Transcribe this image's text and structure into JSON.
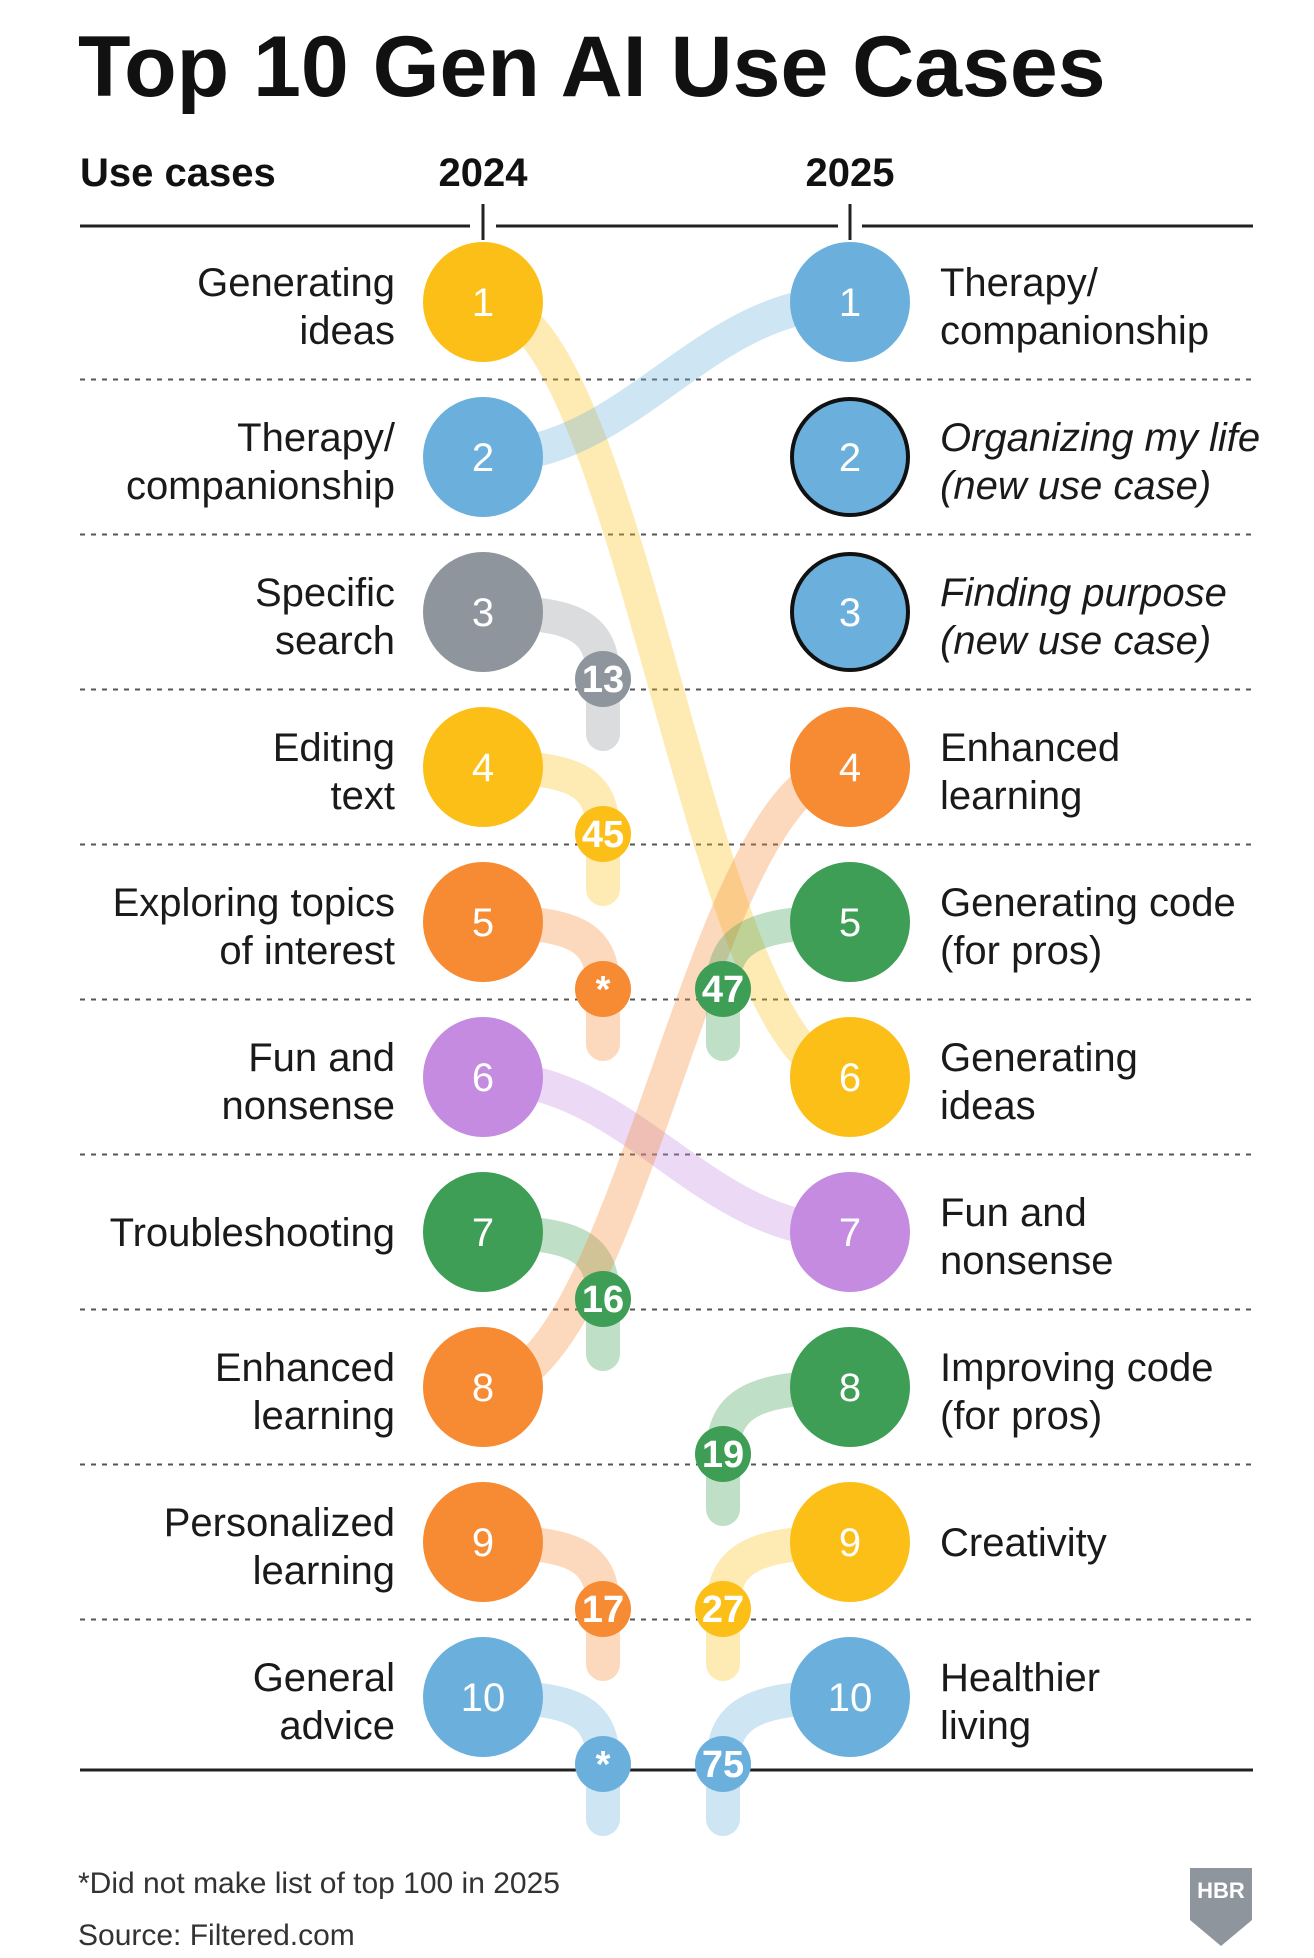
{
  "chart_data": {
    "type": "table",
    "title": "Top 10 Gen AI Use Cases",
    "column_headers": {
      "use_cases": "Use cases",
      "year_a": "2024",
      "year_b": "2025"
    },
    "rows_2024": [
      {
        "rank": 1,
        "label": [
          "Generating",
          "ideas"
        ],
        "color": "#FBBF17",
        "moved_to": 6
      },
      {
        "rank": 2,
        "label": [
          "Therapy/",
          "companionship"
        ],
        "color": "#6BB0DC",
        "moved_to": 1
      },
      {
        "rank": 3,
        "label": [
          "Specific",
          "search"
        ],
        "color": "#8E959C",
        "moved_to": 13
      },
      {
        "rank": 4,
        "label": [
          "Editing",
          "text"
        ],
        "color": "#FBBF17",
        "moved_to": 45
      },
      {
        "rank": 5,
        "label": [
          "Exploring topics",
          "of interest"
        ],
        "color": "#F68B33",
        "moved_to": "*"
      },
      {
        "rank": 6,
        "label": [
          "Fun and",
          "nonsense"
        ],
        "color": "#C48BE0",
        "moved_to": 7
      },
      {
        "rank": 7,
        "label": [
          "Troubleshooting"
        ],
        "color": "#3F9E55",
        "moved_to": 16
      },
      {
        "rank": 8,
        "label": [
          "Enhanced",
          "learning"
        ],
        "color": "#F68B33",
        "moved_to": 4
      },
      {
        "rank": 9,
        "label": [
          "Personalized",
          "learning"
        ],
        "color": "#F68B33",
        "moved_to": 17
      },
      {
        "rank": 10,
        "label": [
          "General",
          "advice"
        ],
        "color": "#6BB0DC",
        "moved_to": "*"
      }
    ],
    "rows_2025": [
      {
        "rank": 1,
        "label": [
          "Therapy/",
          "companionship"
        ],
        "color": "#6BB0DC",
        "italic": false,
        "outlined": false,
        "came_from": 2
      },
      {
        "rank": 2,
        "label": [
          "Organizing my life",
          "(new use case)"
        ],
        "color": "#6BB0DC",
        "italic": true,
        "outlined": true,
        "came_from": null
      },
      {
        "rank": 3,
        "label": [
          "Finding purpose",
          "(new use case)"
        ],
        "color": "#6BB0DC",
        "italic": true,
        "outlined": true,
        "came_from": null
      },
      {
        "rank": 4,
        "label": [
          "Enhanced",
          "learning"
        ],
        "color": "#F68B33",
        "italic": false,
        "outlined": false,
        "came_from": 8
      },
      {
        "rank": 5,
        "label": [
          "Generating code",
          "(for pros)"
        ],
        "color": "#3F9E55",
        "italic": false,
        "outlined": false,
        "came_from": 47
      },
      {
        "rank": 6,
        "label": [
          "Generating",
          "ideas"
        ],
        "color": "#FBBF17",
        "italic": false,
        "outlined": false,
        "came_from": 1
      },
      {
        "rank": 7,
        "label": [
          "Fun and",
          "nonsense"
        ],
        "color": "#C48BE0",
        "italic": false,
        "outlined": false,
        "came_from": 6
      },
      {
        "rank": 8,
        "label": [
          "Improving code",
          "(for pros)"
        ],
        "color": "#3F9E55",
        "italic": false,
        "outlined": false,
        "came_from": 19
      },
      {
        "rank": 9,
        "label": [
          "Creativity"
        ],
        "color": "#FBBF17",
        "italic": false,
        "outlined": false,
        "came_from": 27
      },
      {
        "rank": 10,
        "label": [
          "Healthier",
          "living"
        ],
        "color": "#6BB0DC",
        "italic": false,
        "outlined": false,
        "came_from": 75
      }
    ],
    "footnote": "*Did not make list of top 100 in 2025",
    "source": "Source: Filtered.com",
    "logo": "HBR"
  }
}
